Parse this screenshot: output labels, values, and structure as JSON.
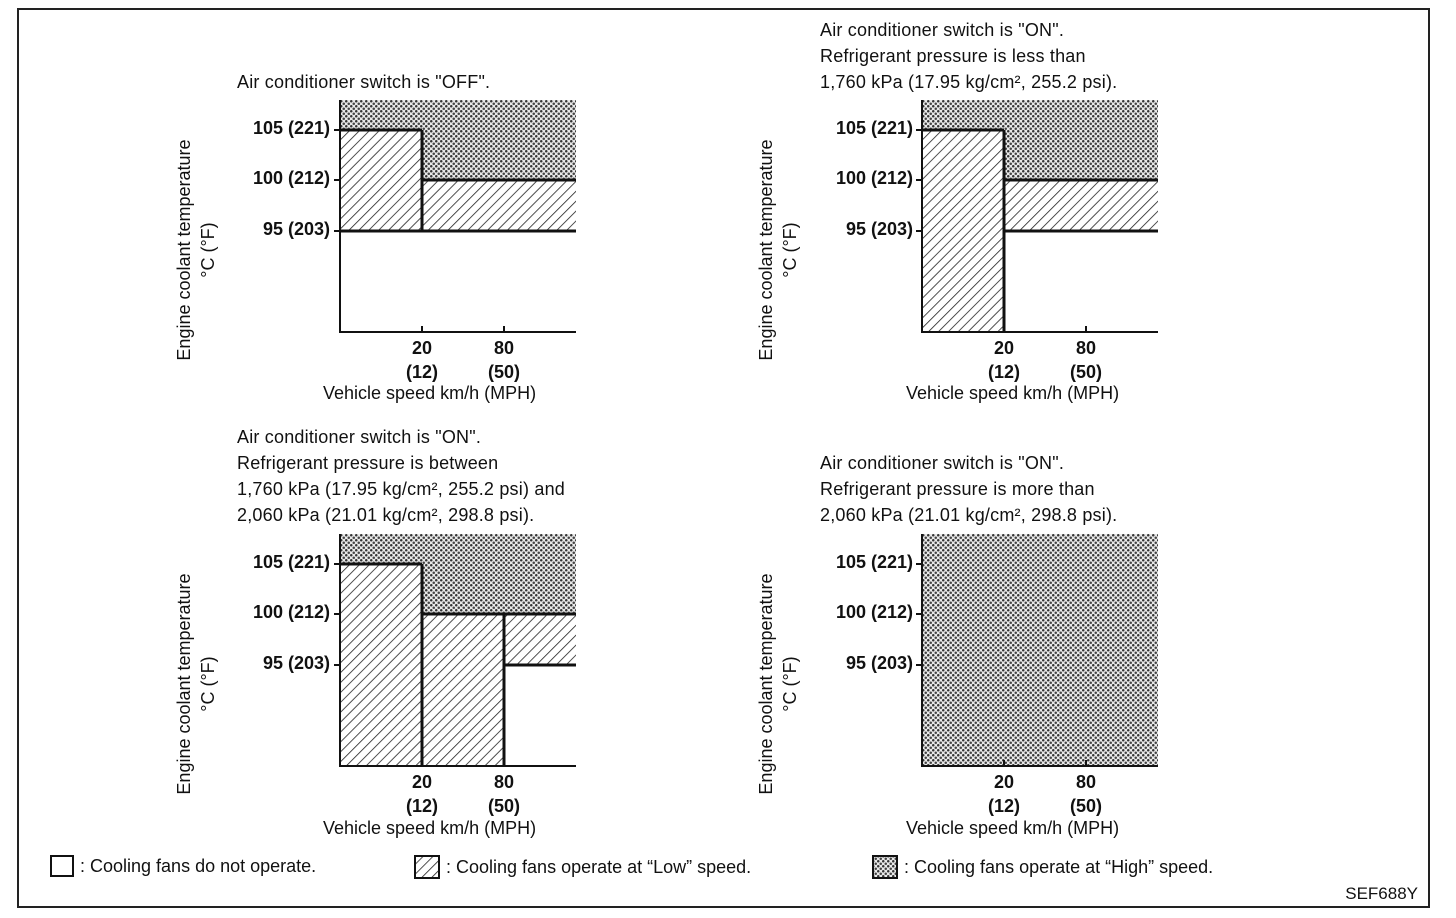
{
  "figure_code": "SEF688Y",
  "patterns": {
    "off": "none",
    "low": "diagonal-hatch",
    "high": "cross-hatch"
  },
  "axis": {
    "ylabel_line1": "Engine coolant temperature",
    "ylabel_line2": "°C (°F)",
    "xlabel": "Vehicle speed km/h (MPH)",
    "yticks": [
      "105 (221)",
      "100 (212)",
      "95 (203)"
    ],
    "xticks": [
      {
        "km": "20",
        "mph": "(12)"
      },
      {
        "km": "80",
        "mph": "(50)"
      }
    ]
  },
  "panels": [
    {
      "id": "ac-off",
      "caption": [
        "Air conditioner switch is \"OFF\"."
      ],
      "regions": [
        {
          "mode": "low",
          "speed_from": 0,
          "speed_to": 20,
          "temp_from": 95,
          "temp_to": 105
        },
        {
          "mode": "high",
          "speed_from": 0,
          "speed_to": 20,
          "temp_from": 105,
          "temp_to": 108
        },
        {
          "mode": "low",
          "speed_from": 20,
          "speed_to": 120,
          "temp_from": 95,
          "temp_to": 100
        },
        {
          "mode": "high",
          "speed_from": 20,
          "speed_to": 120,
          "temp_from": 100,
          "temp_to": 108
        }
      ]
    },
    {
      "id": "ac-on-low-pressure",
      "caption": [
        "Air conditioner switch is \"ON\".",
        "Refrigerant pressure is less than",
        "1,760 kPa (17.95 kg/cm², 255.2 psi)."
      ],
      "regions": [
        {
          "mode": "low",
          "speed_from": 0,
          "speed_to": 20,
          "temp_from": 85,
          "temp_to": 105
        },
        {
          "mode": "high",
          "speed_from": 0,
          "speed_to": 20,
          "temp_from": 105,
          "temp_to": 108
        },
        {
          "mode": "low",
          "speed_from": 20,
          "speed_to": 120,
          "temp_from": 95,
          "temp_to": 100
        },
        {
          "mode": "high",
          "speed_from": 20,
          "speed_to": 120,
          "temp_from": 100,
          "temp_to": 108
        }
      ]
    },
    {
      "id": "ac-on-mid-pressure",
      "caption": [
        "Air conditioner switch is \"ON\".",
        "Refrigerant pressure is between",
        "1,760 kPa (17.95 kg/cm², 255.2 psi) and",
        "2,060 kPa (21.01 kg/cm², 298.8 psi)."
      ],
      "regions": [
        {
          "mode": "low",
          "speed_from": 0,
          "speed_to": 20,
          "temp_from": 85,
          "temp_to": 105
        },
        {
          "mode": "high",
          "speed_from": 0,
          "speed_to": 20,
          "temp_from": 105,
          "temp_to": 108
        },
        {
          "mode": "low",
          "speed_from": 20,
          "speed_to": 80,
          "temp_from": 85,
          "temp_to": 100
        },
        {
          "mode": "low",
          "speed_from": 80,
          "speed_to": 120,
          "temp_from": 95,
          "temp_to": 100
        },
        {
          "mode": "high",
          "speed_from": 20,
          "speed_to": 120,
          "temp_from": 100,
          "temp_to": 108
        }
      ]
    },
    {
      "id": "ac-on-high-pressure",
      "caption": [
        "Air conditioner switch is \"ON\".",
        "Refrigerant pressure is more than",
        "2,060 kPa (21.01 kg/cm², 298.8 psi)."
      ],
      "regions": [
        {
          "mode": "high",
          "speed_from": 0,
          "speed_to": 120,
          "temp_from": 85,
          "temp_to": 108
        }
      ]
    }
  ],
  "legend": [
    {
      "mode": "off",
      "label": ": Cooling fans do not operate."
    },
    {
      "mode": "low",
      "label": ": Cooling fans operate at “Low” speed."
    },
    {
      "mode": "high",
      "label": ": Cooling fans operate at “High” speed."
    }
  ]
}
